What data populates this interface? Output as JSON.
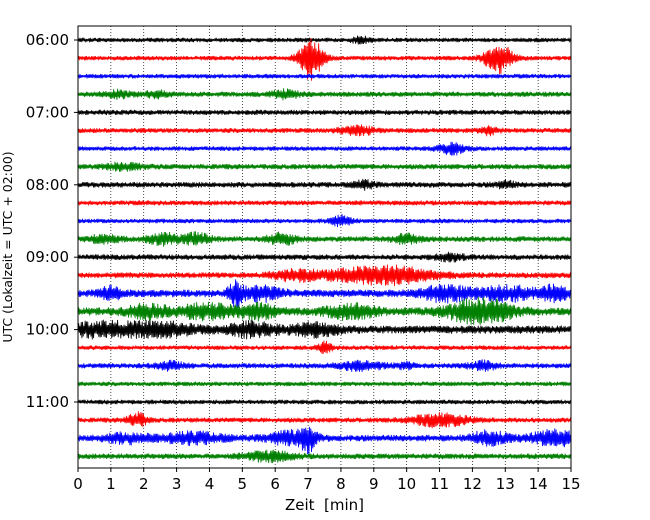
{
  "chart_data": {
    "type": "line",
    "subtype": "helicorder",
    "xlabel": "Zeit  [min]",
    "ylabel": "UTC (Lokalzeit = UTC + 02:00)",
    "xlim": [
      0,
      15
    ],
    "x_ticks": [
      0,
      1,
      2,
      3,
      4,
      5,
      6,
      7,
      8,
      9,
      10,
      11,
      12,
      13,
      14,
      15
    ],
    "grid": "vertical dotted lines at each minute",
    "traces_per_hour": 4,
    "trace_minutes": 15,
    "first_trace_start": "06:00",
    "y_tick_labels": [
      "06:00",
      "07:00",
      "08:00",
      "09:00",
      "10:00",
      "11:00"
    ],
    "trace_colors": [
      "#000000",
      "#ff0000",
      "#0000ff",
      "#008000"
    ],
    "traces": [
      {
        "start": "06:00",
        "color": "#000000",
        "noise": 2.0,
        "events": [
          [
            8.6,
            2.5,
            0.2
          ]
        ]
      },
      {
        "start": "06:15",
        "color": "#ff0000",
        "noise": 2.0,
        "events": [
          [
            7.1,
            22,
            0.25
          ],
          [
            12.8,
            14,
            0.3
          ]
        ]
      },
      {
        "start": "06:30",
        "color": "#0000ff",
        "noise": 2.0,
        "events": []
      },
      {
        "start": "06:45",
        "color": "#008000",
        "noise": 2.3,
        "events": [
          [
            1.2,
            3,
            0.3
          ],
          [
            2.4,
            3,
            0.25
          ],
          [
            6.3,
            4,
            0.3
          ]
        ]
      },
      {
        "start": "07:00",
        "color": "#000000",
        "noise": 2.3,
        "events": []
      },
      {
        "start": "07:15",
        "color": "#ff0000",
        "noise": 2.2,
        "events": [
          [
            8.5,
            4.5,
            0.35
          ],
          [
            12.5,
            3.5,
            0.2
          ]
        ]
      },
      {
        "start": "07:30",
        "color": "#0000ff",
        "noise": 2.0,
        "events": [
          [
            11.4,
            5,
            0.3
          ]
        ]
      },
      {
        "start": "07:45",
        "color": "#008000",
        "noise": 2.4,
        "events": [
          [
            1.4,
            3,
            0.4
          ]
        ]
      },
      {
        "start": "08:00",
        "color": "#000000",
        "noise": 2.5,
        "events": [
          [
            8.7,
            3.5,
            0.2
          ],
          [
            13,
            3,
            0.2
          ]
        ]
      },
      {
        "start": "08:15",
        "color": "#ff0000",
        "noise": 2.2,
        "events": []
      },
      {
        "start": "08:30",
        "color": "#0000ff",
        "noise": 2.0,
        "events": [
          [
            8.0,
            5,
            0.2
          ]
        ]
      },
      {
        "start": "08:45",
        "color": "#008000",
        "noise": 2.5,
        "events": [
          [
            0.8,
            4,
            0.3
          ],
          [
            2.6,
            5,
            0.35
          ],
          [
            3.6,
            5,
            0.3
          ],
          [
            6.2,
            5,
            0.3
          ],
          [
            10,
            4,
            0.3
          ]
        ]
      },
      {
        "start": "09:00",
        "color": "#000000",
        "noise": 2.5,
        "events": [
          [
            11.3,
            3,
            0.3
          ]
        ]
      },
      {
        "start": "09:15",
        "color": "#ff0000",
        "noise": 2.6,
        "events": [
          [
            6.6,
            4.5,
            0.5
          ],
          [
            8.5,
            5,
            0.9
          ],
          [
            9.8,
            6,
            0.8
          ]
        ]
      },
      {
        "start": "09:30",
        "color": "#0000ff",
        "noise": 3.5,
        "events": [
          [
            1.0,
            6,
            0.2
          ],
          [
            4.8,
            12,
            0.15
          ],
          [
            5.6,
            6,
            0.4
          ],
          [
            11.2,
            7,
            0.5
          ],
          [
            13.1,
            6,
            0.6
          ],
          [
            14.5,
            6,
            0.3
          ]
        ]
      },
      {
        "start": "09:45",
        "color": "#008000",
        "noise": 3.8,
        "events": [
          [
            2.1,
            6,
            0.4
          ],
          [
            3.9,
            6,
            0.6
          ],
          [
            5.5,
            6,
            0.4
          ],
          [
            8.3,
            6,
            0.5
          ],
          [
            11.8,
            7,
            0.5
          ],
          [
            12.6,
            8,
            0.5
          ]
        ]
      },
      {
        "start": "10:00",
        "color": "#000000",
        "noise": 3.8,
        "events": [
          [
            0.6,
            6,
            0.6
          ],
          [
            2.4,
            6,
            0.8
          ],
          [
            5.3,
            6,
            0.5
          ],
          [
            7.2,
            5,
            0.5
          ]
        ]
      },
      {
        "start": "10:15",
        "color": "#ff0000",
        "noise": 2.0,
        "events": [
          [
            7.5,
            5,
            0.15
          ]
        ]
      },
      {
        "start": "10:30",
        "color": "#0000ff",
        "noise": 2.3,
        "events": [
          [
            2.8,
            3.5,
            0.3
          ],
          [
            8.6,
            4,
            0.5
          ],
          [
            10,
            3,
            0.2
          ],
          [
            12.3,
            4,
            0.3
          ]
        ]
      },
      {
        "start": "10:45",
        "color": "#008000",
        "noise": 2.0,
        "events": []
      },
      {
        "start": "11:00",
        "color": "#000000",
        "noise": 2.0,
        "events": []
      },
      {
        "start": "11:15",
        "color": "#ff0000",
        "noise": 2.2,
        "events": [
          [
            1.8,
            7,
            0.2
          ],
          [
            11.0,
            6,
            0.6
          ]
        ]
      },
      {
        "start": "11:30",
        "color": "#0000ff",
        "noise": 3.0,
        "events": [
          [
            1.5,
            4,
            0.5
          ],
          [
            3.5,
            5,
            0.6
          ],
          [
            6.5,
            6,
            0.5
          ],
          [
            7.0,
            10,
            0.15
          ],
          [
            12.5,
            6,
            0.4
          ],
          [
            14.5,
            7,
            0.5
          ]
        ]
      },
      {
        "start": "11:45",
        "color": "#008000",
        "noise": 2.5,
        "events": [
          [
            5.8,
            4.5,
            0.5
          ]
        ]
      }
    ]
  }
}
